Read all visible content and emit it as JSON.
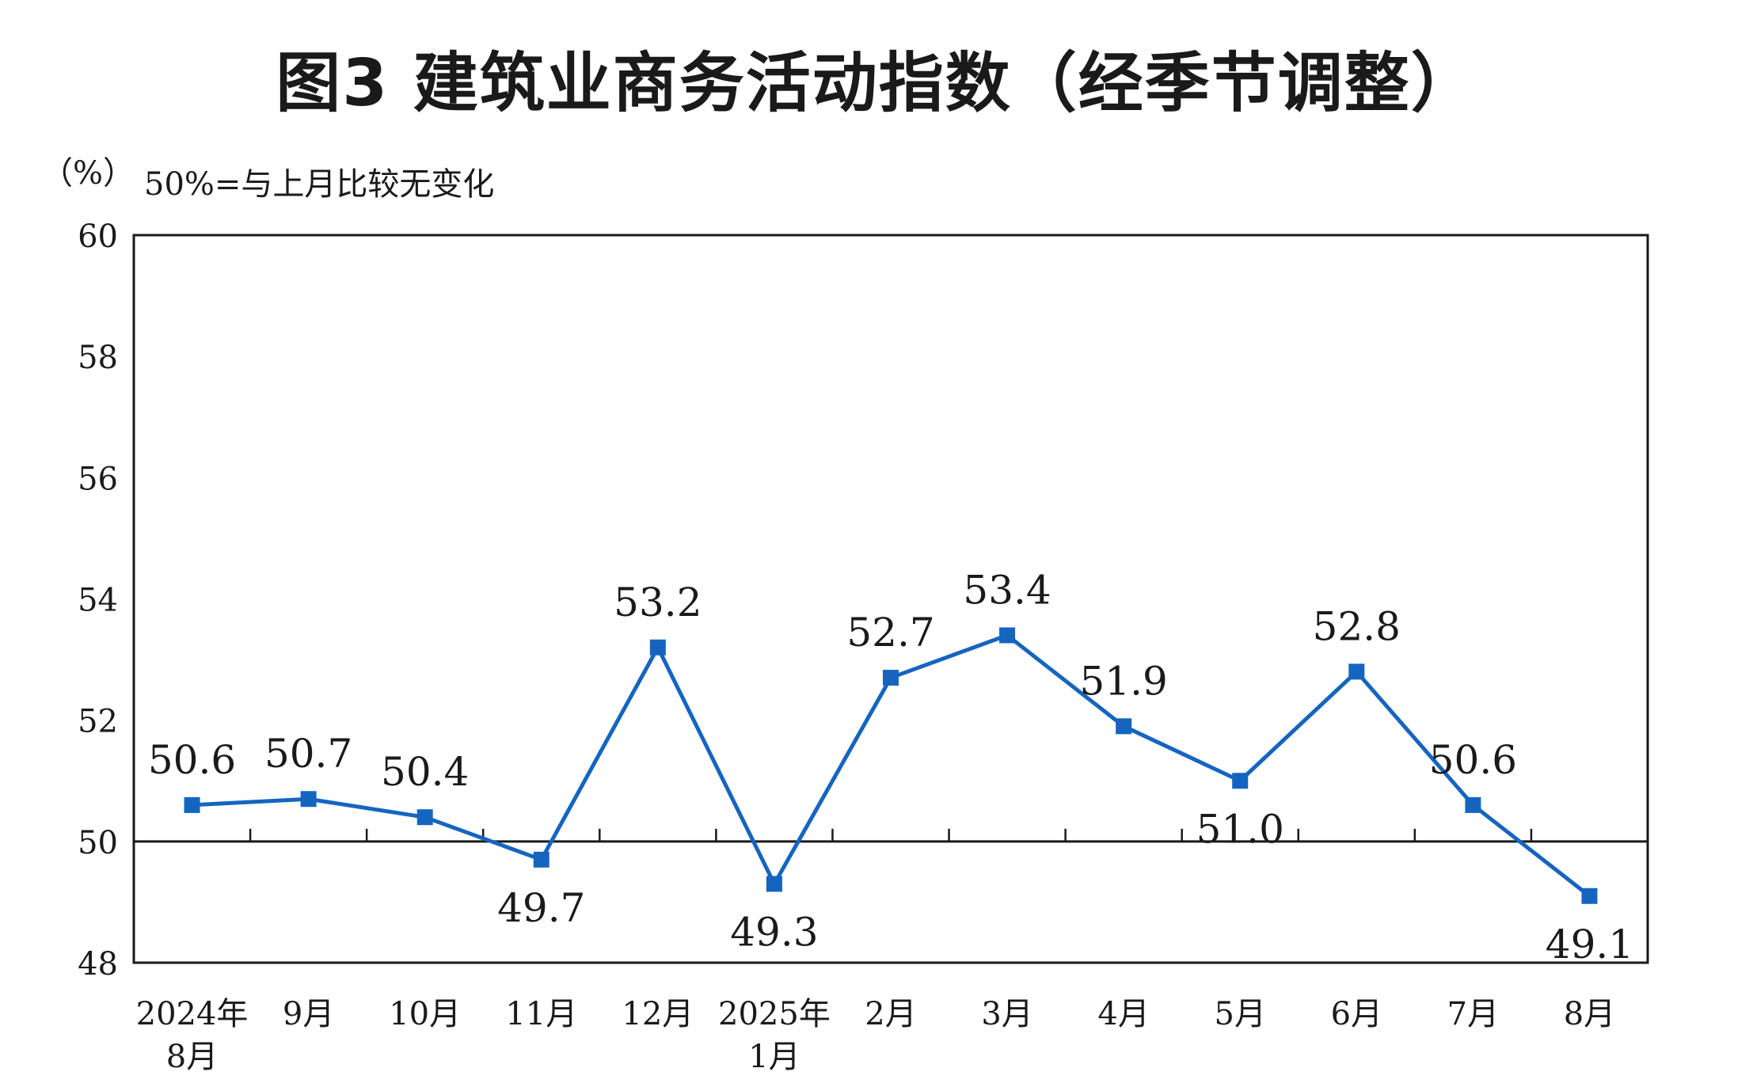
{
  "title": "图3  建筑业商务活动指数（经季节调整）",
  "unit": "（%）",
  "note": "50%=与上月比较无变化",
  "colors": {
    "series": "#1565c0",
    "axis": "#1a1a1a"
  },
  "chart_data": {
    "type": "line",
    "title": "图3  建筑业商务活动指数（经季节调整）",
    "ylabel": "（%）",
    "ylim": [
      48,
      60
    ],
    "yticks": [
      48,
      50,
      52,
      54,
      56,
      58,
      60
    ],
    "baseline": 50,
    "grid": false,
    "legend": "none",
    "x": [
      [
        "2024年",
        "8月"
      ],
      [
        "9月"
      ],
      [
        "10月"
      ],
      [
        "11月"
      ],
      [
        "12月"
      ],
      [
        "2025年",
        "1月"
      ],
      [
        "2月"
      ],
      [
        "3月"
      ],
      [
        "4月"
      ],
      [
        "5月"
      ],
      [
        "6月"
      ],
      [
        "7月"
      ],
      [
        "8月"
      ]
    ],
    "series": [
      {
        "values": [
          50.6,
          50.7,
          50.4,
          49.7,
          53.2,
          49.3,
          52.7,
          53.4,
          51.9,
          51.0,
          52.8,
          50.6,
          49.1
        ],
        "labels": [
          "50.6",
          "50.7",
          "50.4",
          "49.7",
          "53.2",
          "49.3",
          "52.7",
          "53.4",
          "51.9",
          "51.0",
          "52.8",
          "50.6",
          "49.1"
        ]
      }
    ]
  }
}
